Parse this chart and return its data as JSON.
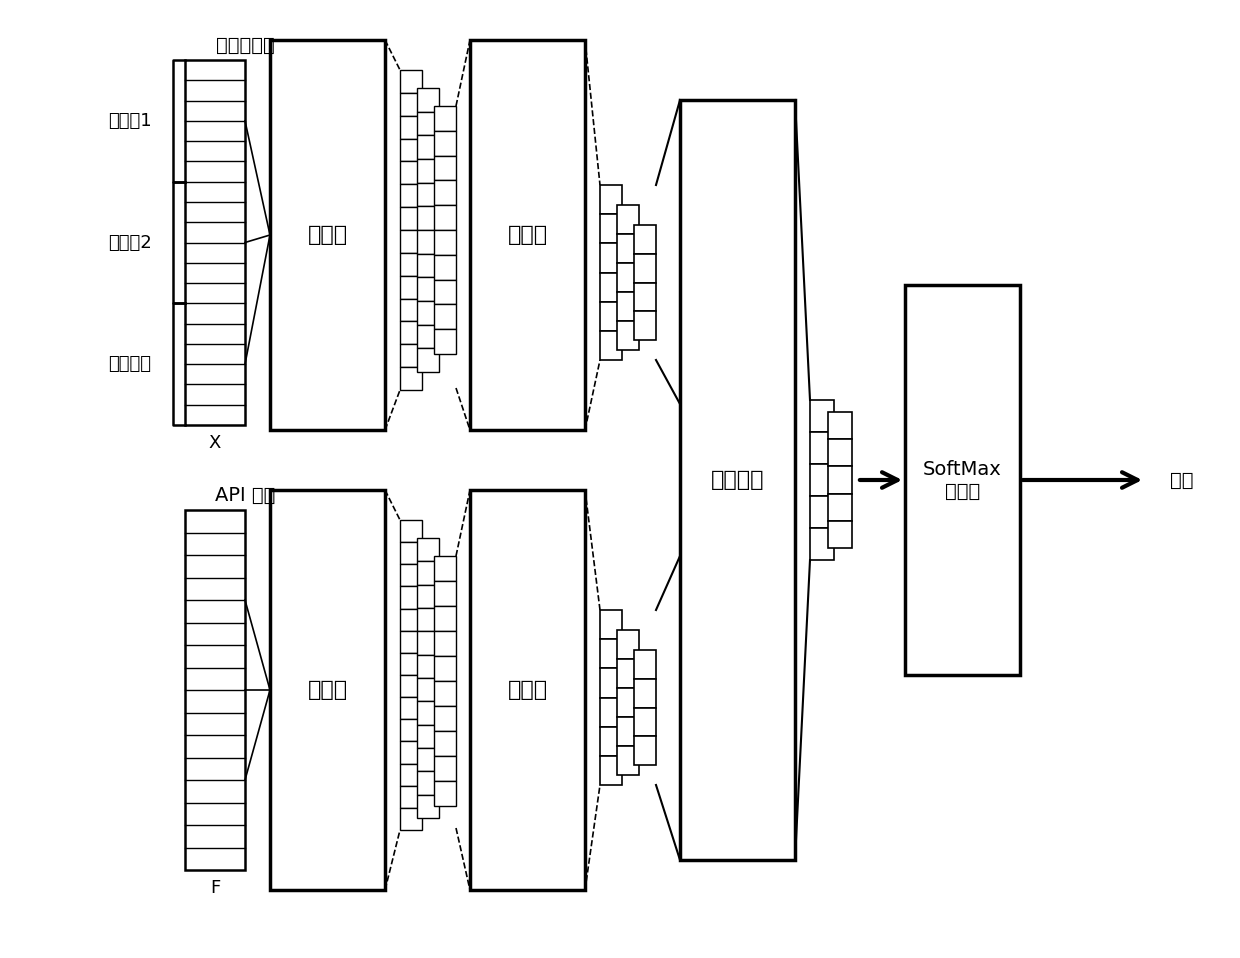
{
  "bg_color": "#ffffff",
  "line_color": "#000000",
  "top_label": "操作码序列",
  "bottom_label": "API 序列",
  "top_x_label": "X",
  "bottom_x_label": "F",
  "kernel_labels": [
    "卷积核1",
    "卷积核2",
    "卷积核３"
  ],
  "conv_label": "卷积层",
  "pool_label": "池化层",
  "fc_label": "全连接层",
  "softmax_label": "SoftMax\n回归层",
  "output_label": "输出"
}
